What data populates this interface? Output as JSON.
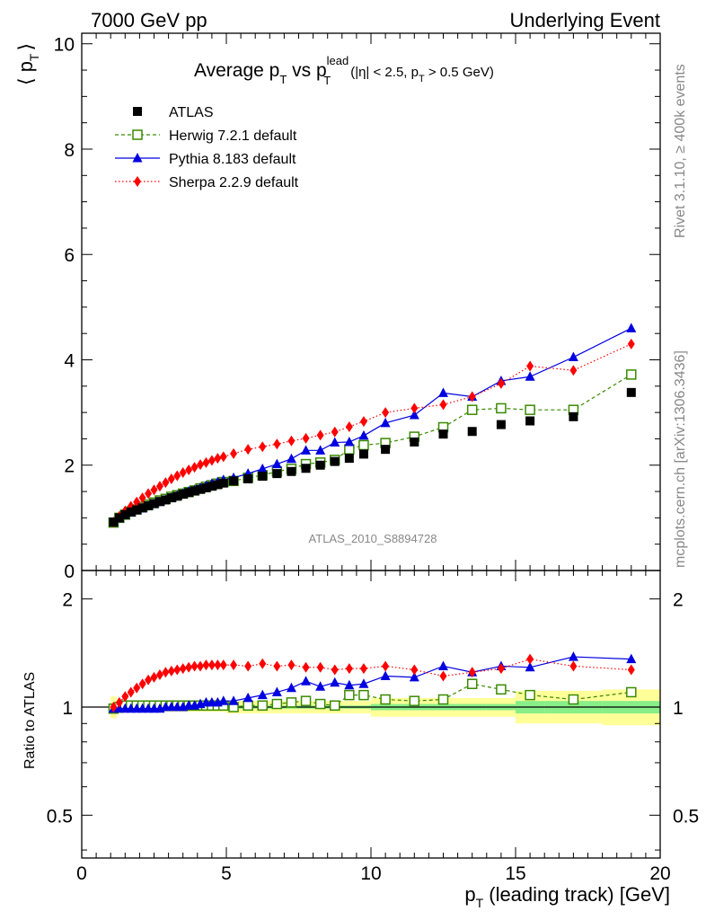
{
  "header": {
    "left": "7000 GeV pp",
    "right": "Underlying Event"
  },
  "side_labels": {
    "rivet": "Rivet 3.1.10, ≥ 400k events",
    "mcplots": "mcplots.cern.ch [arXiv:1306.3436]"
  },
  "watermark": "ATLAS_2010_S8894728",
  "colors": {
    "atlas": "#000000",
    "herwig": "#3a8a00",
    "pythia": "#0000e0",
    "sherpa": "#ff0000",
    "band_outer": "#ffff99",
    "band_inner": "#88ee88"
  },
  "chart_data": [
    {
      "type": "scatter",
      "panel": "main",
      "title": "Average p_T vs p_T^lead (|η| < 2.5, p_T > 0.5 GeV)",
      "title_parts": {
        "main": "Average p",
        "sub1": "T",
        "vs": " vs p",
        "sup": "lead",
        "sub2": "T",
        "cond": "(|η| < 2.5, p",
        "cond_sub": "T",
        "cond_end": " > 0.5 GeV)"
      },
      "ylabel": "⟨ p_T ⟩",
      "ylabel_parts": {
        "l": "⟨ p",
        "sub": "T",
        "r": "⟩"
      },
      "xlim": [
        0,
        20
      ],
      "ylim": [
        0,
        10.2
      ],
      "yticks": [
        "0",
        "2",
        "4",
        "6",
        "8",
        "10"
      ],
      "legend": {
        "position": "top-left"
      },
      "series": [
        {
          "name": "ATLAS",
          "marker": "square-filled",
          "x": [
            1.1,
            1.3,
            1.5,
            1.7,
            1.9,
            2.1,
            2.3,
            2.5,
            2.7,
            2.9,
            3.1,
            3.3,
            3.5,
            3.7,
            3.9,
            4.1,
            4.3,
            4.5,
            4.7,
            4.9,
            5.25,
            5.75,
            6.25,
            6.75,
            7.25,
            7.75,
            8.25,
            8.75,
            9.25,
            9.75,
            10.5,
            11.5,
            12.5,
            13.5,
            14.5,
            15.5,
            17.0,
            19.0
          ],
          "y": [
            0.92,
            1.0,
            1.06,
            1.11,
            1.15,
            1.19,
            1.23,
            1.27,
            1.31,
            1.34,
            1.38,
            1.41,
            1.45,
            1.48,
            1.51,
            1.54,
            1.57,
            1.6,
            1.63,
            1.66,
            1.7,
            1.74,
            1.79,
            1.84,
            1.88,
            1.94,
            2.0,
            2.07,
            2.13,
            2.21,
            2.3,
            2.44,
            2.59,
            2.64,
            2.77,
            2.84,
            2.92,
            3.38
          ]
        },
        {
          "name": "Herwig 7.2.1 default",
          "marker": "square-open",
          "line": "dashed",
          "x": [
            1.1,
            1.3,
            1.5,
            1.7,
            1.9,
            2.1,
            2.3,
            2.5,
            2.7,
            2.9,
            3.1,
            3.3,
            3.5,
            3.7,
            3.9,
            4.1,
            4.3,
            4.5,
            4.7,
            4.9,
            5.25,
            5.75,
            6.25,
            6.75,
            7.25,
            7.75,
            8.25,
            8.75,
            9.25,
            9.75,
            10.5,
            11.5,
            12.5,
            13.5,
            14.5,
            15.5,
            17.0,
            19.0
          ],
          "y": [
            0.91,
            1.0,
            1.06,
            1.12,
            1.16,
            1.21,
            1.25,
            1.29,
            1.33,
            1.36,
            1.4,
            1.43,
            1.46,
            1.49,
            1.52,
            1.56,
            1.59,
            1.62,
            1.65,
            1.68,
            1.7,
            1.76,
            1.81,
            1.88,
            1.93,
            2.02,
            2.05,
            2.1,
            2.3,
            2.38,
            2.42,
            2.54,
            2.72,
            3.05,
            3.08,
            3.05,
            3.05,
            3.72
          ]
        },
        {
          "name": "Pythia 8.183 default",
          "marker": "triangle-filled",
          "line": "solid",
          "x": [
            1.1,
            1.3,
            1.5,
            1.7,
            1.9,
            2.1,
            2.3,
            2.5,
            2.7,
            2.9,
            3.1,
            3.3,
            3.5,
            3.7,
            3.9,
            4.1,
            4.3,
            4.5,
            4.7,
            4.9,
            5.25,
            5.75,
            6.25,
            6.75,
            7.25,
            7.75,
            8.25,
            8.75,
            9.25,
            9.75,
            10.5,
            11.5,
            12.5,
            13.5,
            14.5,
            15.5,
            17.0,
            19.0
          ],
          "y": [
            0.91,
            0.99,
            1.05,
            1.1,
            1.14,
            1.18,
            1.22,
            1.26,
            1.3,
            1.34,
            1.38,
            1.42,
            1.46,
            1.5,
            1.53,
            1.57,
            1.61,
            1.65,
            1.68,
            1.72,
            1.76,
            1.84,
            1.93,
            2.02,
            2.12,
            2.28,
            2.28,
            2.43,
            2.44,
            2.56,
            2.8,
            2.95,
            3.37,
            3.3,
            3.6,
            3.68,
            4.05,
            4.6
          ]
        },
        {
          "name": "Sherpa 2.2.9 default",
          "marker": "diamond-filled",
          "line": "dotted",
          "x": [
            1.1,
            1.3,
            1.5,
            1.7,
            1.9,
            2.1,
            2.3,
            2.5,
            2.7,
            2.9,
            3.1,
            3.3,
            3.5,
            3.7,
            3.9,
            4.1,
            4.3,
            4.5,
            4.7,
            4.9,
            5.25,
            5.75,
            6.25,
            6.75,
            7.25,
            7.75,
            8.25,
            8.75,
            9.25,
            9.75,
            10.5,
            11.5,
            12.5,
            13.5,
            14.5,
            15.5,
            17.0,
            19.0
          ],
          "y": [
            0.92,
            1.03,
            1.13,
            1.22,
            1.3,
            1.38,
            1.46,
            1.53,
            1.6,
            1.67,
            1.74,
            1.8,
            1.86,
            1.91,
            1.96,
            2.01,
            2.05,
            2.09,
            2.13,
            2.16,
            2.22,
            2.3,
            2.35,
            2.4,
            2.46,
            2.51,
            2.57,
            2.63,
            2.73,
            2.83,
            3.0,
            3.08,
            3.15,
            3.3,
            3.55,
            3.88,
            3.8,
            4.3
          ]
        }
      ]
    },
    {
      "type": "scatter",
      "panel": "ratio",
      "ylabel": "Ratio to ATLAS",
      "xlabel": "p_T (leading track) [GeV]",
      "xlabel_parts": {
        "p": "p",
        "sub": "T",
        "rest": " (leading track) [GeV]"
      },
      "xlim": [
        0,
        20
      ],
      "ylim": [
        0.38,
        2.4
      ],
      "ylog": true,
      "yticks": [
        "0.5",
        "1",
        "2"
      ],
      "xticks": [
        "0",
        "5",
        "10",
        "15",
        "20"
      ],
      "bands": {
        "edges": [
          1.0,
          1.2,
          1.4,
          1.6,
          1.8,
          2.0,
          2.2,
          2.4,
          2.6,
          2.8,
          3.0,
          3.2,
          3.4,
          3.6,
          3.8,
          4.0,
          4.2,
          4.4,
          4.6,
          4.8,
          5.0,
          5.5,
          6.0,
          6.5,
          7.0,
          7.5,
          8.0,
          8.5,
          9.0,
          9.5,
          10.0,
          11.0,
          12.0,
          13.0,
          14.0,
          15.0,
          16.0,
          18.0,
          20.0
        ],
        "outer_low": [
          0.93,
          0.96,
          0.97,
          0.97,
          0.97,
          0.97,
          0.97,
          0.97,
          0.97,
          0.97,
          0.97,
          0.97,
          0.97,
          0.97,
          0.97,
          0.97,
          0.97,
          0.97,
          0.97,
          0.97,
          0.96,
          0.96,
          0.96,
          0.96,
          0.96,
          0.96,
          0.96,
          0.96,
          0.96,
          0.96,
          0.94,
          0.94,
          0.94,
          0.94,
          0.94,
          0.9,
          0.9,
          0.89
        ],
        "outer_high": [
          1.07,
          1.04,
          1.03,
          1.03,
          1.03,
          1.03,
          1.03,
          1.03,
          1.03,
          1.03,
          1.03,
          1.03,
          1.03,
          1.03,
          1.03,
          1.03,
          1.03,
          1.03,
          1.03,
          1.03,
          1.04,
          1.04,
          1.04,
          1.04,
          1.04,
          1.04,
          1.04,
          1.04,
          1.04,
          1.04,
          1.06,
          1.06,
          1.06,
          1.06,
          1.06,
          1.11,
          1.11,
          1.12
        ],
        "inner_low": [
          0.98,
          0.99,
          0.99,
          0.99,
          0.99,
          0.99,
          0.99,
          0.99,
          0.99,
          0.99,
          0.99,
          0.99,
          0.99,
          0.99,
          0.99,
          0.99,
          0.99,
          0.99,
          0.99,
          0.99,
          0.99,
          0.99,
          0.99,
          0.99,
          0.99,
          0.99,
          0.99,
          0.99,
          0.99,
          0.99,
          0.98,
          0.98,
          0.98,
          0.98,
          0.98,
          0.96,
          0.96,
          0.96
        ],
        "inner_high": [
          1.02,
          1.01,
          1.01,
          1.01,
          1.01,
          1.01,
          1.01,
          1.01,
          1.01,
          1.01,
          1.01,
          1.01,
          1.01,
          1.01,
          1.01,
          1.01,
          1.01,
          1.01,
          1.01,
          1.01,
          1.01,
          1.01,
          1.01,
          1.01,
          1.01,
          1.01,
          1.01,
          1.01,
          1.01,
          1.01,
          1.02,
          1.02,
          1.02,
          1.02,
          1.02,
          1.04,
          1.04,
          1.04
        ]
      },
      "series": [
        {
          "name": "Herwig 7.2.1 default",
          "marker": "square-open",
          "line": "dashed",
          "x": [
            1.1,
            1.3,
            1.5,
            1.7,
            1.9,
            2.1,
            2.3,
            2.5,
            2.7,
            2.9,
            3.1,
            3.3,
            3.5,
            3.7,
            3.9,
            4.1,
            4.3,
            4.5,
            4.7,
            4.9,
            5.25,
            5.75,
            6.25,
            6.75,
            7.25,
            7.75,
            8.25,
            8.75,
            9.25,
            9.75,
            10.5,
            11.5,
            12.5,
            13.5,
            14.5,
            15.5,
            17.0,
            19.0
          ],
          "y": [
            0.99,
            1.0,
            1.01,
            1.01,
            1.01,
            1.01,
            1.01,
            1.01,
            1.01,
            1.01,
            1.01,
            1.01,
            1.01,
            1.01,
            1.01,
            1.01,
            1.01,
            1.01,
            1.01,
            1.01,
            1.0,
            1.01,
            1.01,
            1.02,
            1.03,
            1.04,
            1.02,
            1.01,
            1.08,
            1.08,
            1.05,
            1.04,
            1.05,
            1.16,
            1.12,
            1.08,
            1.05,
            1.1
          ]
        },
        {
          "name": "Pythia 8.183 default",
          "marker": "triangle-filled",
          "line": "solid",
          "x": [
            1.1,
            1.3,
            1.5,
            1.7,
            1.9,
            2.1,
            2.3,
            2.5,
            2.7,
            2.9,
            3.1,
            3.3,
            3.5,
            3.7,
            3.9,
            4.1,
            4.3,
            4.5,
            4.7,
            4.9,
            5.25,
            5.75,
            6.25,
            6.75,
            7.25,
            7.75,
            8.25,
            8.75,
            9.25,
            9.75,
            10.5,
            11.5,
            12.5,
            13.5,
            14.5,
            15.5,
            17.0,
            19.0
          ],
          "y": [
            0.99,
            0.99,
            0.99,
            0.99,
            0.99,
            0.99,
            0.99,
            0.99,
            0.99,
            1.0,
            1.0,
            1.0,
            1.0,
            1.01,
            1.01,
            1.02,
            1.03,
            1.03,
            1.03,
            1.04,
            1.04,
            1.06,
            1.08,
            1.1,
            1.13,
            1.18,
            1.14,
            1.17,
            1.15,
            1.16,
            1.22,
            1.21,
            1.3,
            1.25,
            1.3,
            1.29,
            1.38,
            1.36
          ]
        },
        {
          "name": "Sherpa 2.2.9 default",
          "marker": "diamond-filled",
          "line": "dotted",
          "x": [
            1.1,
            1.3,
            1.5,
            1.7,
            1.9,
            2.1,
            2.3,
            2.5,
            2.7,
            2.9,
            3.1,
            3.3,
            3.5,
            3.7,
            3.9,
            4.1,
            4.3,
            4.5,
            4.7,
            4.9,
            5.25,
            5.75,
            6.25,
            6.75,
            7.25,
            7.75,
            8.25,
            8.75,
            9.25,
            9.75,
            10.5,
            11.5,
            12.5,
            13.5,
            14.5,
            15.5,
            17.0,
            19.0
          ],
          "y": [
            1.0,
            1.03,
            1.07,
            1.1,
            1.13,
            1.16,
            1.19,
            1.21,
            1.23,
            1.25,
            1.26,
            1.27,
            1.28,
            1.29,
            1.3,
            1.3,
            1.31,
            1.31,
            1.31,
            1.31,
            1.31,
            1.3,
            1.32,
            1.3,
            1.31,
            1.29,
            1.29,
            1.27,
            1.28,
            1.28,
            1.3,
            1.27,
            1.22,
            1.25,
            1.28,
            1.36,
            1.3,
            1.27
          ]
        }
      ]
    }
  ]
}
